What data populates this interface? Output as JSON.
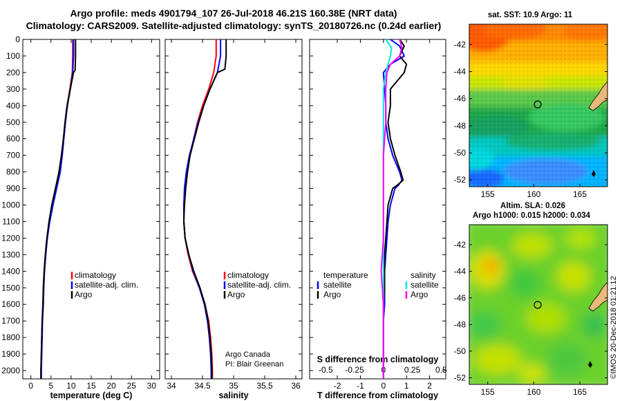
{
  "title": {
    "line1": "Argo profile: meds 4901794_107 26-Jul-2018 46.21S 160.38E (NRT data)",
    "line2": "Climatology: CARS2009. Satellite-adjusted climatology: synTS_20180726.nc (0.24d earlier)"
  },
  "depth_ticks": [
    "0",
    "100",
    "200",
    "300",
    "400",
    "500",
    "600",
    "700",
    "800",
    "900",
    "1000",
    "1100",
    "1200",
    "1300",
    "1400",
    "1500",
    "1600",
    "1700",
    "1800",
    "1900",
    "2000"
  ],
  "colors": {
    "climatology": "#ff0000",
    "satellite": "#0000ff",
    "argo": "#000000",
    "sat_salinity": "#00e5e5",
    "argo_salinity": "#ff00ff"
  },
  "credit": {
    "line1": "Argo Canada",
    "line2": "PI: Blair Greenan"
  },
  "imos_stamp": "©IMOS 20-Dec-2018 01:21:12",
  "chart_data": [
    {
      "type": "line",
      "xlabel": "temperature (deg C)",
      "xticks": [
        "0",
        "5",
        "10",
        "15",
        "20",
        "25",
        "30"
      ],
      "xlim": [
        -2,
        32
      ],
      "ylim": [
        0,
        2050
      ],
      "y_reversed": true,
      "legend": [
        "climatology",
        "satellite-adj. clim.",
        "Argo"
      ],
      "series": [
        {
          "name": "climatology",
          "color": "#ff0000",
          "depth": [
            0,
            100,
            200,
            300,
            400,
            500,
            600,
            700,
            800,
            900,
            1000,
            1100,
            1200,
            1300,
            1400,
            1500,
            1600,
            1700,
            1800,
            1900,
            2000,
            2050
          ],
          "values": [
            10.4,
            10.4,
            10.3,
            9.7,
            9.0,
            8.5,
            8.1,
            7.6,
            7.0,
            6.2,
            5.4,
            4.6,
            4.0,
            3.6,
            3.3,
            3.1,
            3.0,
            2.8,
            2.7,
            2.6,
            2.5,
            2.5
          ]
        },
        {
          "name": "satellite-adj. clim.",
          "color": "#0000ff",
          "depth": [
            0,
            100,
            200,
            300,
            400,
            500,
            600,
            700,
            800,
            900,
            1000,
            1100,
            1200,
            1300,
            1400,
            1500,
            1600,
            1700,
            1800,
            1900,
            2000,
            2050
          ],
          "values": [
            10.6,
            10.6,
            10.4,
            9.8,
            9.1,
            8.6,
            8.2,
            7.8,
            7.3,
            6.4,
            5.5,
            4.7,
            4.1,
            3.7,
            3.4,
            3.2,
            3.1,
            2.9,
            2.8,
            2.7,
            2.6,
            2.6
          ]
        },
        {
          "name": "Argo",
          "color": "#000000",
          "depth": [
            0,
            100,
            185,
            200,
            300,
            400,
            500,
            600,
            700,
            800,
            900,
            1000,
            1100,
            1200,
            1300,
            1400,
            1500,
            1600,
            1700,
            1800,
            1900,
            2000,
            2050
          ],
          "values": [
            11.1,
            11.1,
            11.0,
            10.6,
            9.8,
            9.0,
            8.5,
            8.1,
            7.6,
            7.0,
            6.1,
            5.2,
            4.5,
            4.0,
            3.6,
            3.3,
            3.1,
            3.0,
            2.8,
            2.7,
            2.6,
            2.5,
            2.5
          ]
        }
      ]
    },
    {
      "type": "line",
      "xlabel": "salinity",
      "xticks": [
        "34",
        "34.5",
        "35",
        "35.5",
        "36"
      ],
      "xlim": [
        33.9,
        36.1
      ],
      "ylim": [
        0,
        2050
      ],
      "y_reversed": true,
      "legend": [
        "climatology",
        "satellite-adj. clim.",
        "Argo"
      ],
      "series": [
        {
          "name": "climatology",
          "color": "#ff0000",
          "depth": [
            0,
            100,
            200,
            300,
            400,
            500,
            600,
            700,
            800,
            900,
            1000,
            1100,
            1200,
            1300,
            1400,
            1500,
            1600,
            1700,
            1800,
            1900,
            2000,
            2050
          ],
          "values": [
            34.72,
            34.72,
            34.68,
            34.6,
            34.5,
            34.42,
            34.36,
            34.3,
            34.25,
            34.22,
            34.2,
            34.2,
            34.22,
            34.27,
            34.34,
            34.45,
            34.54,
            34.6,
            34.63,
            34.65,
            34.66,
            34.66
          ]
        },
        {
          "name": "satellite-adj. clim.",
          "color": "#0000ff",
          "depth": [
            0,
            100,
            200,
            300,
            400,
            500,
            600,
            700,
            800,
            900,
            1000,
            1100,
            1200,
            1300,
            1400,
            1500,
            1600,
            1700,
            1800,
            1900,
            2000,
            2050
          ],
          "values": [
            34.79,
            34.79,
            34.74,
            34.62,
            34.52,
            34.43,
            34.36,
            34.29,
            34.24,
            34.21,
            34.2,
            34.2,
            34.22,
            34.28,
            34.35,
            34.45,
            34.53,
            34.58,
            34.61,
            34.63,
            34.64,
            34.64
          ]
        },
        {
          "name": "Argo",
          "color": "#000000",
          "depth": [
            0,
            100,
            180,
            200,
            300,
            400,
            500,
            600,
            700,
            800,
            900,
            1000,
            1100,
            1200,
            1300,
            1400,
            1500,
            1600,
            1700,
            1800,
            1900,
            2000,
            2050
          ],
          "values": [
            34.88,
            34.88,
            34.86,
            34.74,
            34.62,
            34.52,
            34.44,
            34.37,
            34.3,
            34.26,
            34.23,
            34.21,
            34.2,
            34.22,
            34.28,
            34.36,
            34.46,
            34.54,
            34.59,
            34.62,
            34.64,
            34.65,
            34.65
          ]
        }
      ]
    },
    {
      "type": "line",
      "xlabel": "T difference from climatology",
      "xticks": [
        "-2",
        "-1",
        "0",
        "1",
        "2"
      ],
      "xlim": [
        -3.2,
        2.7
      ],
      "secondary_xlabel": "S difference from climatology",
      "secondary_xticks": [
        "-0.5",
        "-0.25",
        "0",
        "0.25",
        "0.5"
      ],
      "secondary_xlim": [
        -0.64,
        0.54
      ],
      "ylim": [
        0,
        2050
      ],
      "y_reversed": true,
      "legend_left_title": "temperature",
      "legend_left": [
        "satellite",
        "Argo"
      ],
      "legend_right_title": "salinity",
      "legend_right": [
        "satellite",
        "Argo"
      ],
      "series": [
        {
          "name": "temperature satellite",
          "axis": "T",
          "color": "#0000ff",
          "depth": [
            0,
            40,
            100,
            150,
            200,
            300,
            400,
            500,
            600,
            700,
            800,
            850,
            880,
            900,
            950,
            1000,
            1100,
            1200,
            1300,
            1400,
            1500,
            1600,
            1700,
            1800,
            1900,
            2000,
            2050
          ],
          "values": [
            0.3,
            0.7,
            0.9,
            0.3,
            0.0,
            0.05,
            0.1,
            0.1,
            0.2,
            0.4,
            0.7,
            0.8,
            0.65,
            0.5,
            0.4,
            0.3,
            0.2,
            0.15,
            0.1,
            0.05,
            0.05,
            0.05,
            0.0,
            0.0,
            0.0,
            0.0,
            0.0
          ]
        },
        {
          "name": "temperature Argo",
          "axis": "T",
          "color": "#000000",
          "depth": [
            0,
            40,
            100,
            150,
            200,
            250,
            300,
            400,
            500,
            600,
            700,
            800,
            850,
            880,
            900,
            950,
            1000,
            1100,
            1200,
            1300,
            1400,
            1500,
            1600,
            1700,
            1800,
            1900,
            2000,
            2050
          ],
          "values": [
            0.7,
            0.9,
            0.7,
            1.0,
            0.9,
            0.6,
            0.3,
            0.3,
            0.2,
            0.3,
            0.5,
            0.75,
            0.85,
            0.6,
            0.4,
            0.3,
            0.2,
            0.15,
            0.1,
            0.05,
            0.05,
            0.05,
            0.0,
            0.0,
            0.0,
            0.0,
            0.0,
            0.0
          ]
        },
        {
          "name": "salinity satellite",
          "axis": "S",
          "color": "#00e5e5",
          "depth": [
            0,
            50,
            100,
            200,
            300,
            400,
            500,
            600,
            700,
            800,
            900,
            1000,
            1100,
            1200,
            1300,
            1400,
            1500,
            1600,
            1700,
            1800,
            1900,
            2000,
            2050
          ],
          "values": [
            0.02,
            0.07,
            0.06,
            0.02,
            0.0,
            0.0,
            0.0,
            0.0,
            0.0,
            0.0,
            0.0,
            0.0,
            0.0,
            0.0,
            0.0,
            0.0,
            0.0,
            0.0,
            0.0,
            0.0,
            0.0,
            0.0,
            0.0
          ]
        },
        {
          "name": "salinity Argo",
          "axis": "S",
          "color": "#ff00ff",
          "depth": [
            0,
            50,
            100,
            150,
            200,
            300,
            400,
            500,
            600,
            700,
            800,
            900,
            1000,
            1100,
            1200,
            1300,
            1400,
            1500,
            1600,
            1700,
            1800,
            1900,
            2000,
            2050
          ],
          "values": [
            0.14,
            0.16,
            0.14,
            0.06,
            0.03,
            0.02,
            0.02,
            0.02,
            0.01,
            0.0,
            0.0,
            0.0,
            0.0,
            0.0,
            0.0,
            -0.01,
            -0.02,
            -0.01,
            0.0,
            0.0,
            0.0,
            0.0,
            0.0,
            0.0
          ]
        }
      ]
    },
    {
      "type": "heatmap",
      "title": "sat. SST: 10.9 Argo: 11",
      "xticks": [
        "155",
        "160",
        "165"
      ],
      "yticks": [
        "-42",
        "-44",
        "-46",
        "-48",
        "-50",
        "-52"
      ],
      "xlim": [
        153,
        168
      ],
      "ylim": [
        -52.5,
        -40.5
      ],
      "marker": {
        "lon": 160.38,
        "lat": -46.21
      },
      "colormap": "jet"
    },
    {
      "type": "heatmap",
      "title": "Altim. SLA: 0.026",
      "subtitle": "Argo h1000: 0.015 h2000: 0.034",
      "xticks": [
        "155",
        "160",
        "165"
      ],
      "yticks": [
        "-42",
        "-44",
        "-46",
        "-48",
        "-50",
        "-52"
      ],
      "xlim": [
        153,
        168
      ],
      "ylim": [
        -52.5,
        -40.5
      ],
      "marker": {
        "lon": 160.38,
        "lat": -46.21
      },
      "colormap": "jet"
    }
  ]
}
